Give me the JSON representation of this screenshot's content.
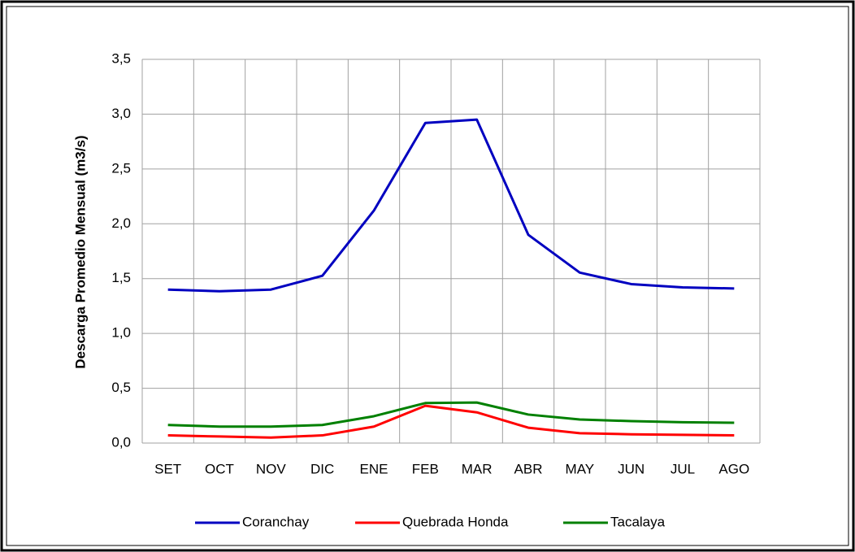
{
  "chart_data": {
    "type": "line",
    "y_label": "Descarga Promedio Mensual (m3/s)",
    "categories": [
      "SET",
      "OCT",
      "NOV",
      "DIC",
      "ENE",
      "FEB",
      "MAR",
      "ABR",
      "MAY",
      "JUN",
      "JUL",
      "AGO"
    ],
    "series": [
      {
        "name": "Coranchay",
        "color": "#0000c0",
        "values": [
          1.4,
          1.385,
          1.4,
          1.526,
          2.12,
          2.92,
          2.95,
          1.9,
          1.555,
          1.45,
          1.42,
          1.41
        ]
      },
      {
        "name": "Quebrada Honda",
        "color": "#ff0000",
        "values": [
          0.07,
          0.06,
          0.05,
          0.07,
          0.15,
          0.34,
          0.28,
          0.14,
          0.09,
          0.08,
          0.075,
          0.07
        ]
      },
      {
        "name": "Tacalaya",
        "color": "#008000",
        "values": [
          0.165,
          0.15,
          0.15,
          0.165,
          0.245,
          0.365,
          0.37,
          0.26,
          0.215,
          0.2,
          0.19,
          0.185
        ]
      }
    ],
    "ylim": [
      0,
      3.5
    ],
    "yticks": [
      {
        "value": 0,
        "label": "0,0"
      },
      {
        "value": 0.5,
        "label": "0,5"
      },
      {
        "value": 1,
        "label": "1,0"
      },
      {
        "value": 1.5,
        "label": "1,5"
      },
      {
        "value": 2,
        "label": "2,0"
      },
      {
        "value": 2.5,
        "label": "2,5"
      },
      {
        "value": 3,
        "label": "3,0"
      },
      {
        "value": 3.5,
        "label": "3,5"
      }
    ],
    "grid": true,
    "legend": "bottom"
  }
}
